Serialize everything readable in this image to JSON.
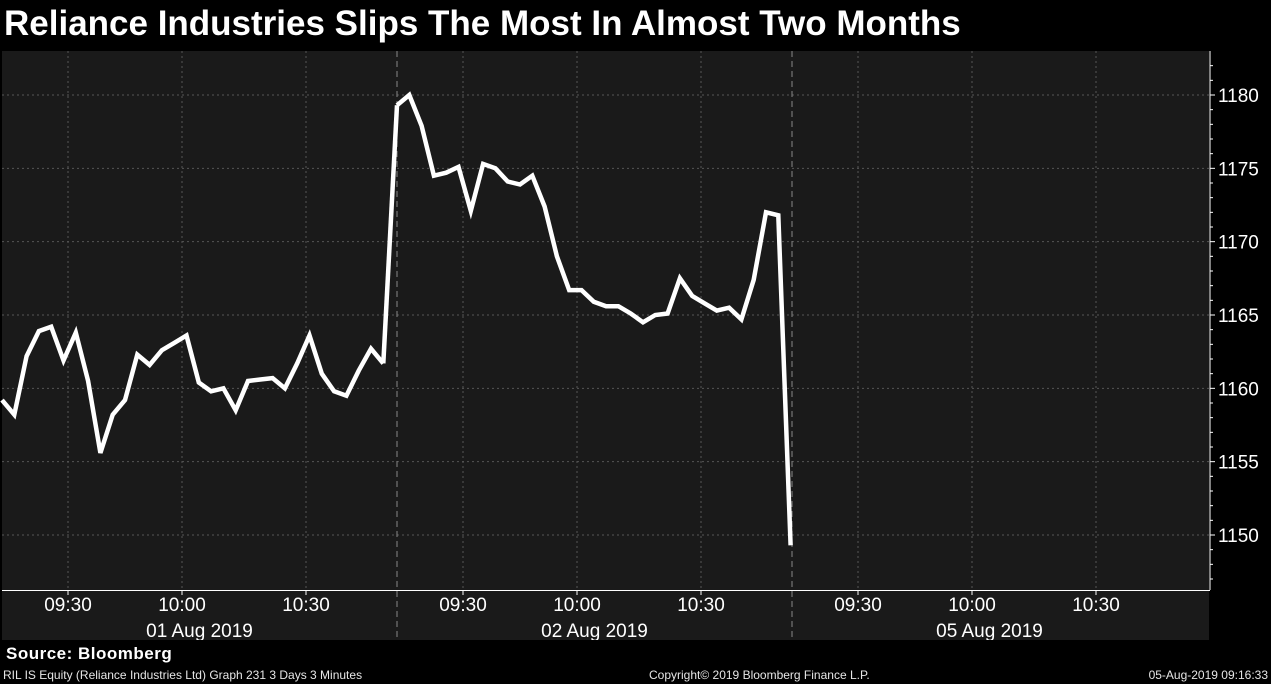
{
  "title": "Reliance Industries Slips The Most In Almost Two Months",
  "source": "Source: Bloomberg",
  "footer": {
    "left": "RIL IS Equity (Reliance Industries Ltd) Graph 231 3 Days 3 Minutes",
    "center": "Copyright© 2019 Bloomberg Finance L.P.",
    "right": "05-Aug-2019 09:16:33"
  },
  "colors": {
    "background": "#000000",
    "plot_background": "#1a1a1a",
    "line": "#ffffff",
    "grid": "#555555",
    "text": "#ffffff"
  },
  "chart_data": {
    "type": "line",
    "title": "Reliance Industries Slips The Most In Almost Two Months",
    "xlabel": "",
    "ylabel": "",
    "y_axis_side": "right",
    "ylim": [
      1147,
      1182
    ],
    "yticks": [
      1150,
      1155,
      1160,
      1165,
      1170,
      1175,
      1180
    ],
    "grid": true,
    "session_minutes": 105,
    "days": [
      {
        "label": "01 Aug 2019",
        "times": [
          "09:30",
          "10:00",
          "10:30"
        ],
        "values": [
          1159.2,
          1158.2,
          1162.2,
          1163.9,
          1164.2,
          1161.9,
          1163.8,
          1160.5,
          1155.6,
          1158.2,
          1159.2,
          1162.3,
          1161.6,
          1162.6,
          1163.1,
          1163.6,
          1160.4,
          1159.8,
          1160.0,
          1158.5,
          1160.5,
          1160.6,
          1160.7,
          1160.0,
          1161.7,
          1163.6,
          1161.0,
          1159.8,
          1159.5,
          1161.2,
          1162.7,
          1161.7
        ]
      },
      {
        "label": "02 Aug 2019",
        "times": [
          "09:30",
          "10:00",
          "10:30"
        ],
        "values": [
          1179.3,
          1180.0,
          1177.9,
          1174.5,
          1174.7,
          1175.1,
          1172.1,
          1175.3,
          1175.0,
          1174.1,
          1173.9,
          1174.5,
          1172.4,
          1169.0,
          1166.7,
          1166.7,
          1165.9,
          1165.6,
          1165.6,
          1165.1,
          1164.5,
          1165.0,
          1165.1,
          1167.5,
          1166.3,
          1165.8,
          1165.3,
          1165.5,
          1164.7,
          1167.4,
          1172.0,
          1171.8,
          1149.3
        ]
      },
      {
        "label": "05 Aug 2019",
        "times": [
          "09:30",
          "10:00",
          "10:30"
        ],
        "values": []
      }
    ]
  }
}
